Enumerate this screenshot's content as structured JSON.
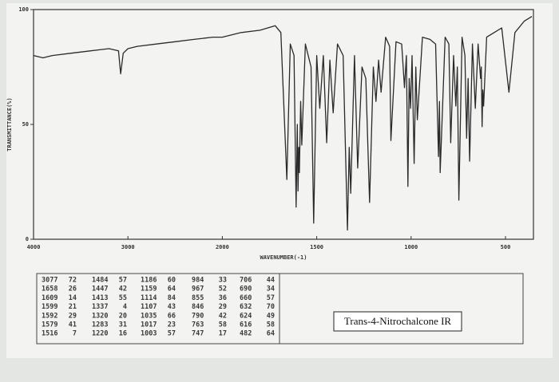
{
  "chart_data": {
    "type": "line",
    "x_label": "WAVENUMBER(-1)",
    "y_label": "TRANSMITTANCE(%)",
    "x_scale": "piecewise",
    "xlim": [
      4000,
      350
    ],
    "xticks": [
      4000,
      3000,
      2000,
      1500,
      1000,
      500
    ],
    "ylim": [
      0,
      100
    ],
    "yticks": [
      0,
      50,
      100
    ],
    "grid": false,
    "series": [
      {
        "color": "#2a2a2a",
        "x": [
          4000,
          3900,
          3800,
          3600,
          3400,
          3200,
          3100,
          3077,
          3050,
          3000,
          2900,
          2700,
          2500,
          2300,
          2100,
          2000,
          1900,
          1800,
          1720,
          1690,
          1658,
          1640,
          1620,
          1609,
          1603,
          1599,
          1595,
          1592,
          1585,
          1579,
          1560,
          1530,
          1516,
          1500,
          1484,
          1465,
          1447,
          1430,
          1413,
          1390,
          1360,
          1337,
          1328,
          1320,
          1300,
          1283,
          1260,
          1240,
          1220,
          1200,
          1186,
          1172,
          1159,
          1135,
          1114,
          1107,
          1080,
          1050,
          1035,
          1025,
          1017,
          1010,
          1003,
          995,
          984,
          975,
          967,
          940,
          900,
          870,
          855,
          850,
          846,
          820,
          800,
          790,
          775,
          763,
          755,
          747,
          730,
          715,
          706,
          698,
          690,
          675,
          660,
          645,
          632,
          628,
          624,
          620,
          616,
          600,
          560,
          520,
          482,
          450,
          400,
          360
        ],
        "values": [
          80,
          79,
          80,
          81,
          82,
          83,
          82,
          72,
          81,
          83,
          84,
          85,
          86,
          87,
          88,
          88,
          90,
          91,
          93,
          90,
          26,
          85,
          80,
          14,
          50,
          21,
          40,
          29,
          60,
          41,
          85,
          75,
          7,
          80,
          57,
          80,
          42,
          78,
          55,
          85,
          80,
          4,
          40,
          20,
          80,
          31,
          75,
          70,
          16,
          75,
          60,
          78,
          64,
          88,
          84,
          43,
          86,
          85,
          66,
          80,
          23,
          70,
          57,
          80,
          33,
          75,
          52,
          88,
          87,
          85,
          36,
          60,
          29,
          88,
          85,
          42,
          80,
          58,
          75,
          17,
          88,
          80,
          44,
          70,
          34,
          85,
          57,
          85,
          70,
          75,
          49,
          65,
          58,
          88,
          90,
          92,
          64,
          90,
          95,
          97
        ]
      }
    ],
    "peak_table": [
      [
        [
          3077,
          72
        ],
        [
          1658,
          26
        ],
        [
          1609,
          14
        ],
        [
          1599,
          21
        ],
        [
          1592,
          29
        ],
        [
          1579,
          41
        ],
        [
          1516,
          7
        ]
      ],
      [
        [
          1484,
          57
        ],
        [
          1447,
          42
        ],
        [
          1413,
          55
        ],
        [
          1337,
          4
        ],
        [
          1320,
          20
        ],
        [
          1283,
          31
        ],
        [
          1220,
          16
        ]
      ],
      [
        [
          1186,
          60
        ],
        [
          1159,
          64
        ],
        [
          1114,
          84
        ],
        [
          1107,
          43
        ],
        [
          1035,
          66
        ],
        [
          1017,
          23
        ],
        [
          1003,
          57
        ]
      ],
      [
        [
          984,
          33
        ],
        [
          967,
          52
        ],
        [
          855,
          36
        ],
        [
          846,
          29
        ],
        [
          790,
          42
        ],
        [
          763,
          58
        ],
        [
          747,
          17
        ]
      ],
      [
        [
          706,
          44
        ],
        [
          690,
          34
        ],
        [
          660,
          57
        ],
        [
          632,
          70
        ],
        [
          624,
          49
        ],
        [
          616,
          58
        ],
        [
          482,
          64
        ]
      ]
    ],
    "annotation": "Trans-4-Nitrochalcone IR"
  }
}
